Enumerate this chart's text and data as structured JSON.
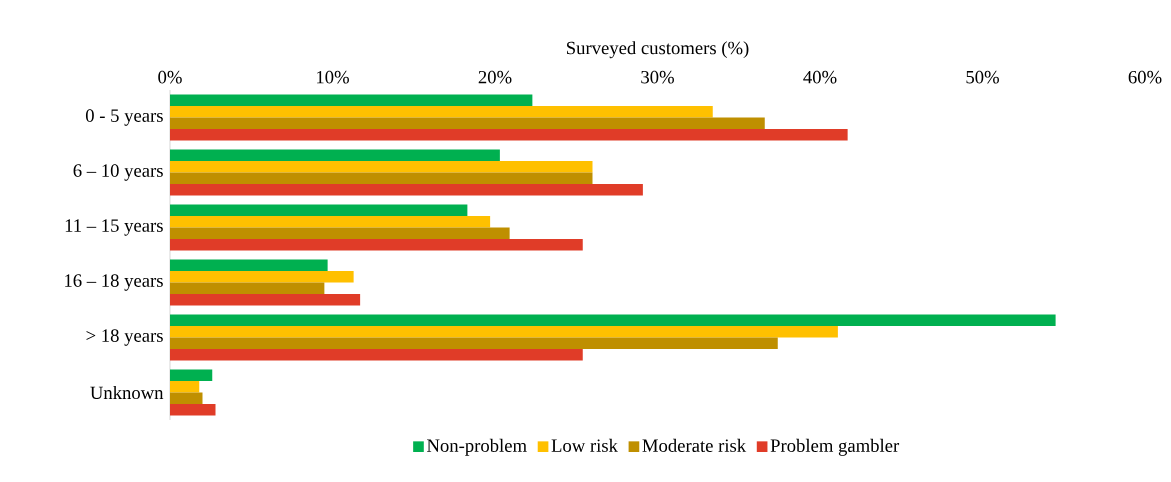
{
  "chart_data": {
    "type": "bar",
    "orientation": "horizontal",
    "xlabel": "Surveyed customers (%)",
    "categories": [
      "0 - 5 years",
      "6 – 10 years",
      "11 – 15 years",
      "16 – 18 years",
      "> 18 years",
      "Unknown"
    ],
    "series": [
      {
        "name": "Non-problem",
        "color": "#00b050",
        "values": [
          22.3,
          20.3,
          18.3,
          9.7,
          54.5,
          2.6
        ]
      },
      {
        "name": "Low risk",
        "color": "#ffc000",
        "values": [
          33.4,
          26.0,
          19.7,
          11.3,
          41.1,
          1.8
        ]
      },
      {
        "name": "Moderate risk",
        "color": "#bf8f00",
        "values": [
          36.6,
          26.0,
          20.9,
          9.5,
          37.4,
          2.0
        ]
      },
      {
        "name": "Problem gambler",
        "color": "#e03c28",
        "values": [
          41.7,
          29.1,
          25.4,
          11.7,
          25.4,
          2.8
        ]
      }
    ],
    "xlim": [
      0,
      60
    ],
    "xticks": [
      {
        "value": 0,
        "label": "0%"
      },
      {
        "value": 10,
        "label": "10%"
      },
      {
        "value": 20,
        "label": "20%"
      },
      {
        "value": 30,
        "label": "30%"
      },
      {
        "value": 40,
        "label": "40%"
      },
      {
        "value": 50,
        "label": "50%"
      },
      {
        "value": 60,
        "label": "60%"
      }
    ],
    "grid": false,
    "legend": "bottom"
  }
}
